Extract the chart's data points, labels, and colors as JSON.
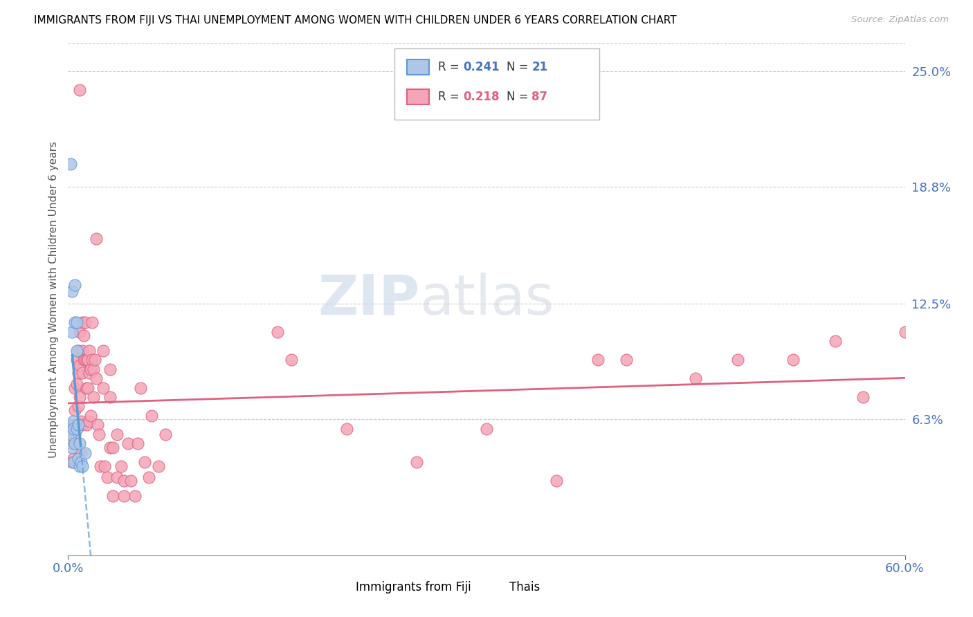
{
  "title": "IMMIGRANTS FROM FIJI VS THAI UNEMPLOYMENT AMONG WOMEN WITH CHILDREN UNDER 6 YEARS CORRELATION CHART",
  "source": "Source: ZipAtlas.com",
  "ylabel": "Unemployment Among Women with Children Under 6 years",
  "xlim": [
    0.0,
    0.6
  ],
  "ylim": [
    -0.01,
    0.265
  ],
  "ytick_right_labels": [
    "6.3%",
    "12.5%",
    "18.8%",
    "25.0%"
  ],
  "ytick_right_values": [
    0.063,
    0.125,
    0.188,
    0.25
  ],
  "fiji_scatter_color": "#aec6e8",
  "thai_scatter_color": "#f4a6b8",
  "fiji_trend_color": "#5b9bd5",
  "thai_trend_color": "#e06080",
  "fiji_x": [
    0.002,
    0.002,
    0.003,
    0.003,
    0.003,
    0.004,
    0.004,
    0.004,
    0.005,
    0.005,
    0.005,
    0.006,
    0.006,
    0.006,
    0.007,
    0.007,
    0.008,
    0.008,
    0.009,
    0.01,
    0.012
  ],
  "fiji_y": [
    0.2,
    0.055,
    0.132,
    0.11,
    0.048,
    0.062,
    0.058,
    0.04,
    0.135,
    0.115,
    0.05,
    0.115,
    0.1,
    0.058,
    0.06,
    0.042,
    0.05,
    0.038,
    0.04,
    0.038,
    0.045
  ],
  "thai_x": [
    0.003,
    0.003,
    0.003,
    0.004,
    0.004,
    0.005,
    0.005,
    0.005,
    0.005,
    0.006,
    0.006,
    0.006,
    0.007,
    0.007,
    0.007,
    0.008,
    0.008,
    0.008,
    0.008,
    0.009,
    0.009,
    0.01,
    0.01,
    0.01,
    0.01,
    0.011,
    0.011,
    0.012,
    0.012,
    0.013,
    0.013,
    0.013,
    0.014,
    0.014,
    0.015,
    0.015,
    0.015,
    0.016,
    0.016,
    0.017,
    0.017,
    0.018,
    0.018,
    0.019,
    0.02,
    0.02,
    0.021,
    0.022,
    0.023,
    0.025,
    0.025,
    0.026,
    0.028,
    0.03,
    0.03,
    0.03,
    0.032,
    0.032,
    0.035,
    0.035,
    0.038,
    0.04,
    0.04,
    0.043,
    0.045,
    0.048,
    0.05,
    0.052,
    0.055,
    0.058,
    0.06,
    0.065,
    0.07,
    0.15,
    0.16,
    0.2,
    0.25,
    0.3,
    0.35,
    0.38,
    0.4,
    0.45,
    0.48,
    0.52,
    0.55,
    0.57,
    0.6
  ],
  "thai_y": [
    0.06,
    0.05,
    0.04,
    0.058,
    0.042,
    0.08,
    0.068,
    0.055,
    0.04,
    0.095,
    0.082,
    0.06,
    0.1,
    0.088,
    0.07,
    0.24,
    0.11,
    0.092,
    0.075,
    0.062,
    0.045,
    0.115,
    0.1,
    0.088,
    0.06,
    0.108,
    0.095,
    0.115,
    0.095,
    0.095,
    0.08,
    0.06,
    0.095,
    0.08,
    0.1,
    0.088,
    0.062,
    0.09,
    0.065,
    0.115,
    0.095,
    0.09,
    0.075,
    0.095,
    0.16,
    0.085,
    0.06,
    0.055,
    0.038,
    0.1,
    0.08,
    0.038,
    0.032,
    0.09,
    0.075,
    0.048,
    0.048,
    0.022,
    0.055,
    0.032,
    0.038,
    0.03,
    0.022,
    0.05,
    0.03,
    0.022,
    0.05,
    0.08,
    0.04,
    0.032,
    0.065,
    0.038,
    0.055,
    0.11,
    0.095,
    0.058,
    0.04,
    0.058,
    0.03,
    0.095,
    0.095,
    0.085,
    0.095,
    0.095,
    0.105,
    0.075,
    0.11
  ]
}
